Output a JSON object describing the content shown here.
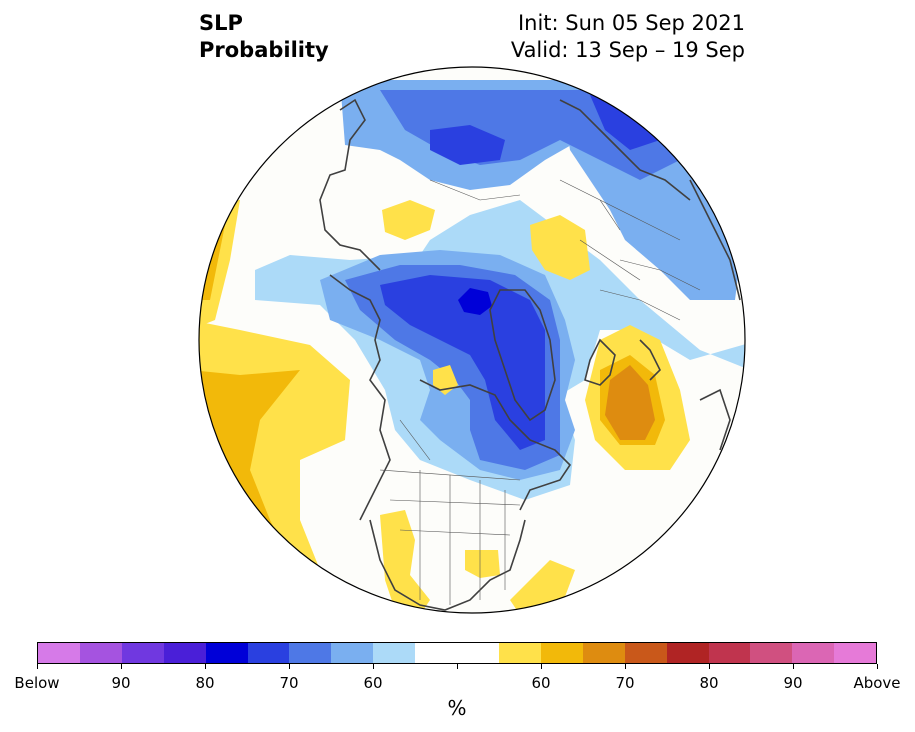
{
  "title": {
    "variable": "SLP",
    "kind": "Probability",
    "init": "Init: Sun 05 Sep 2021",
    "valid": "Valid: 13 Sep – 19 Sep"
  },
  "colorbar": {
    "colors": [
      "#d67ae8",
      "#a553e0",
      "#7038e0",
      "#4a1fd8",
      "#0000d8",
      "#2a40e0",
      "#4e78e6",
      "#7aaff0",
      "#acdaf8",
      "#ffffff",
      "#ffffff",
      "#ffe14a",
      "#f2b90a",
      "#de8c10",
      "#c9581a",
      "#b02424",
      "#c0344e",
      "#d05080",
      "#db66b4",
      "#e67ad8"
    ],
    "tick_labels": [
      "Below",
      "90",
      "80",
      "70",
      "60",
      "60",
      "70",
      "80",
      "90",
      "Above"
    ],
    "units": "%"
  },
  "map": {
    "projection": "north-polar-stereographic",
    "legend_meaning": "below-normal (blue) / above-normal (yellow-orange) probability"
  }
}
